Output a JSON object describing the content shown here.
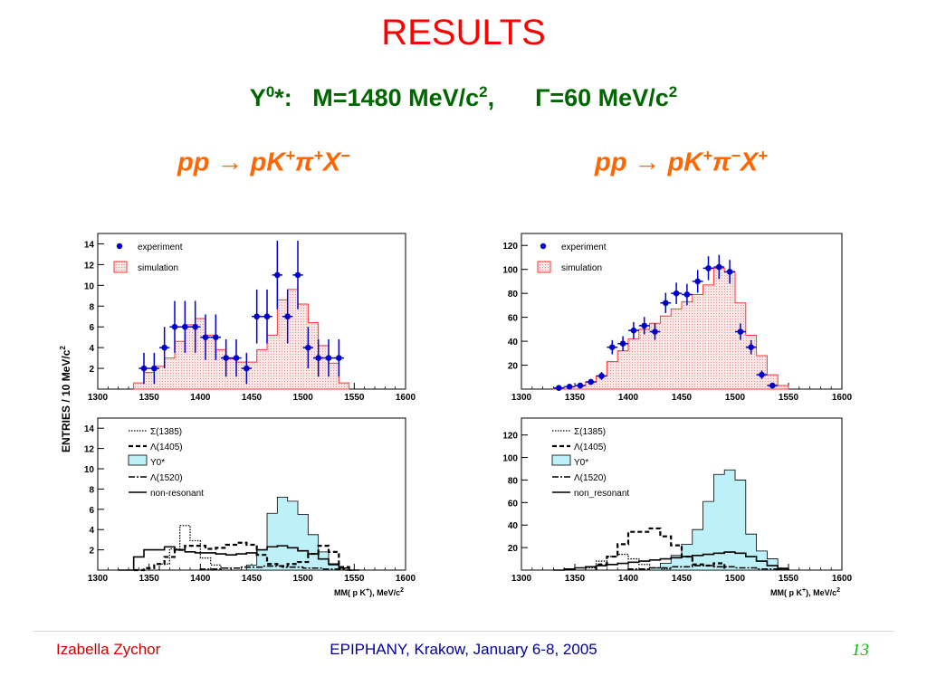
{
  "slide": {
    "title": "RESULTS",
    "subtitle": {
      "particle": "Y",
      "particle_sup": "0",
      "particle_suffix": "*:",
      "mass": "M=1480 MeV/c",
      "mass_sup": "2",
      "mass_suffix": ",",
      "width": "Γ=60 MeV/c",
      "width_sup": "2"
    },
    "reaction_left": {
      "initial": "pp",
      "arrow": "→",
      "products": "pK",
      "k_sup": "+",
      "pi": "π",
      "pi_sup": "+",
      "x": "X",
      "x_sup": "−"
    },
    "reaction_right": {
      "initial": "pp",
      "arrow": "→",
      "products": "pK",
      "k_sup": "+",
      "pi": "π",
      "pi_sup": "−",
      "x": "X",
      "x_sup": "+"
    },
    "ylabel": "ENTRIES / 10 MeV/c",
    "ylabel_sup": "2",
    "xlabel": "MM( p K",
    "xlabel_sup": "+",
    "xlabel_suffix": "), MeV/c",
    "xlabel_sup2": "2",
    "footer": {
      "author": "Izabella Zychor",
      "event": "EPIPHANY, Krakow, January 6-8, 2005",
      "page": "13"
    }
  },
  "colors": {
    "title": "#ff0000",
    "subtitle": "#006600",
    "reaction": "#ff6600",
    "experiment": "#0000cc",
    "simulation": "#ff3333",
    "simulation_fill": "#f7d4d4",
    "y0_fill": "#bdf1f7",
    "footer_author": "#cc0000",
    "footer_event": "#000099",
    "footer_page": "#00bb00"
  },
  "chart_data": [
    {
      "id": "top-left",
      "type": "histogram",
      "xlim": [
        1300,
        1600
      ],
      "ylim": [
        0,
        15
      ],
      "xticks": [
        1300,
        1350,
        1400,
        1450,
        1500,
        1550,
        1600
      ],
      "yticks": [
        2,
        4,
        6,
        8,
        10,
        12,
        14
      ],
      "legend": [
        "experiment",
        "simulation"
      ],
      "simulation": {
        "name": "simulation",
        "edges": [
          1335,
          1345,
          1355,
          1365,
          1375,
          1385,
          1395,
          1405,
          1415,
          1425,
          1435,
          1445,
          1455,
          1465,
          1475,
          1485,
          1495,
          1505,
          1515,
          1525,
          1535,
          1545
        ],
        "values": [
          0.6,
          1.6,
          2.2,
          3.0,
          4.6,
          6.2,
          6.8,
          5.2,
          3.8,
          2.9,
          2.6,
          2.6,
          3.8,
          5.2,
          8.6,
          9.6,
          8.2,
          6.4,
          4.2,
          2.5,
          0.6
        ]
      },
      "experiment": {
        "name": "experiment",
        "x": [
          1345,
          1355,
          1365,
          1375,
          1385,
          1395,
          1405,
          1415,
          1425,
          1435,
          1445,
          1455,
          1465,
          1475,
          1485,
          1495,
          1505,
          1515,
          1525,
          1535
        ],
        "y": [
          2,
          2,
          4,
          6,
          6,
          6,
          5,
          5,
          3,
          3,
          2,
          7,
          7,
          11,
          7,
          11,
          4,
          3,
          3,
          3
        ],
        "err": [
          1.5,
          1.5,
          2.0,
          2.5,
          2.5,
          2.5,
          2.2,
          2.2,
          1.8,
          1.8,
          1.5,
          2.6,
          2.6,
          3.3,
          2.6,
          3.3,
          2.0,
          1.8,
          1.8,
          1.8
        ]
      }
    },
    {
      "id": "top-right",
      "type": "histogram",
      "xlim": [
        1300,
        1600
      ],
      "ylim": [
        0,
        130
      ],
      "xticks": [
        1300,
        1350,
        1400,
        1450,
        1500,
        1550,
        1600
      ],
      "yticks": [
        20,
        40,
        60,
        80,
        100,
        120
      ],
      "legend": [
        "experiment",
        "simulation"
      ],
      "simulation": {
        "name": "simulation",
        "edges": [
          1330,
          1340,
          1350,
          1360,
          1370,
          1380,
          1390,
          1400,
          1410,
          1420,
          1430,
          1440,
          1450,
          1460,
          1470,
          1480,
          1490,
          1500,
          1510,
          1520,
          1530,
          1540,
          1550
        ],
        "values": [
          1,
          2,
          3,
          6,
          11,
          23,
          32,
          42,
          50,
          55,
          61,
          67,
          73,
          79,
          87,
          101,
          98,
          72,
          45,
          28,
          12,
          3
        ]
      },
      "experiment": {
        "name": "experiment",
        "x": [
          1335,
          1345,
          1355,
          1365,
          1375,
          1385,
          1395,
          1405,
          1415,
          1425,
          1435,
          1445,
          1455,
          1465,
          1475,
          1485,
          1495,
          1505,
          1515,
          1525,
          1535
        ],
        "y": [
          1,
          2,
          3,
          6,
          11,
          35,
          38,
          49,
          53,
          48,
          72,
          80,
          79,
          90,
          101,
          102,
          98,
          48,
          35,
          12,
          3
        ],
        "err": [
          1,
          1.4,
          1.7,
          2.4,
          3.3,
          5.9,
          6.2,
          7.0,
          7.3,
          6.9,
          8.5,
          8.9,
          8.9,
          9.5,
          10.0,
          10.1,
          9.9,
          6.9,
          5.9,
          3.5,
          1.7
        ]
      }
    },
    {
      "id": "bottom-left",
      "type": "histogram",
      "xlim": [
        1300,
        1600
      ],
      "ylim": [
        0,
        15
      ],
      "xticks": [
        1300,
        1350,
        1400,
        1450,
        1500,
        1550,
        1600
      ],
      "yticks": [
        2,
        4,
        6,
        8,
        10,
        12,
        14
      ],
      "legend": [
        "Σ(1385)",
        "Λ(1405)",
        "Y0*",
        "Λ(1520)",
        "non-resonant"
      ],
      "series": [
        {
          "name": "Y0*",
          "edges": [
            1445,
            1455,
            1465,
            1475,
            1485,
            1495,
            1505,
            1515,
            1525,
            1535
          ],
          "values": [
            0.5,
            2.0,
            5.6,
            7.2,
            6.8,
            5.5,
            3.5,
            1.8,
            0.5
          ]
        },
        {
          "name": "Σ(1385)",
          "edges": [
            1360,
            1370,
            1380,
            1390,
            1400,
            1410,
            1420,
            1430
          ],
          "values": [
            0.6,
            2.1,
            4.4,
            2.9,
            1.2,
            0.5,
            0.2
          ]
        },
        {
          "name": "Λ(1405)",
          "edges": [
            1335,
            1345,
            1355,
            1365,
            1375,
            1385,
            1395,
            1405,
            1415,
            1425,
            1435,
            1445,
            1455,
            1465,
            1475,
            1485,
            1495,
            1505,
            1515,
            1525,
            1535,
            1545
          ],
          "values": [
            0.0,
            0.2,
            0.6,
            1.3,
            2.0,
            2.4,
            2.4,
            2.1,
            2.2,
            2.5,
            2.7,
            2.5,
            1.5,
            0.6,
            0.4,
            0.6,
            0.8,
            1.6,
            2.4,
            1.8,
            0.3
          ]
        },
        {
          "name": "Λ(1520)",
          "edges": [
            1400,
            1420,
            1440,
            1460,
            1480,
            1500,
            1520,
            1540,
            1550
          ],
          "values": [
            0.1,
            0.2,
            0.3,
            0.4,
            0.3,
            0.2,
            0.1,
            0.0
          ]
        },
        {
          "name": "non-resonant",
          "edges": [
            1320,
            1335,
            1345,
            1355,
            1365,
            1375,
            1385,
            1395,
            1405,
            1415,
            1425,
            1435,
            1445,
            1455,
            1465,
            1475,
            1485,
            1495,
            1505,
            1515,
            1525,
            1535,
            1545,
            1555
          ],
          "values": [
            0.0,
            1.3,
            2.0,
            2.0,
            2.3,
            2.0,
            1.8,
            1.7,
            1.7,
            1.6,
            1.5,
            1.6,
            1.7,
            2.0,
            2.3,
            2.4,
            2.2,
            1.9,
            1.6,
            1.1,
            0.6,
            0.2,
            0.0
          ]
        }
      ]
    },
    {
      "id": "bottom-right",
      "type": "histogram",
      "xlim": [
        1300,
        1600
      ],
      "ylim": [
        0,
        135
      ],
      "xticks": [
        1300,
        1350,
        1400,
        1450,
        1500,
        1550,
        1600
      ],
      "yticks": [
        20,
        40,
        60,
        80,
        100,
        120
      ],
      "legend": [
        "Σ(1385)",
        "Λ(1405)",
        "Y0*",
        "Λ(1520)",
        "non_resonant"
      ],
      "series": [
        {
          "name": "Y0*",
          "edges": [
            1420,
            1430,
            1440,
            1450,
            1460,
            1470,
            1480,
            1490,
            1500,
            1510,
            1520,
            1530,
            1540,
            1550
          ],
          "values": [
            2,
            6,
            13,
            23,
            36,
            61,
            85,
            89,
            80,
            32,
            17,
            10,
            2
          ]
        },
        {
          "name": "Σ(1385)",
          "edges": [
            1360,
            1370,
            1380,
            1390,
            1400,
            1410,
            1420,
            1430,
            1440
          ],
          "values": [
            2,
            8,
            12,
            14,
            10,
            5,
            2,
            1
          ]
        },
        {
          "name": "Λ(1405)",
          "edges": [
            1370,
            1380,
            1390,
            1400,
            1410,
            1420,
            1430,
            1440,
            1450,
            1460,
            1470,
            1480,
            1490
          ],
          "values": [
            5,
            12,
            23,
            34,
            34,
            37,
            30,
            22,
            12,
            5,
            4,
            6
          ]
        },
        {
          "name": "Λ(1520)",
          "edges": [
            1400,
            1420,
            1440,
            1460,
            1480,
            1500,
            1520,
            1540
          ],
          "values": [
            1,
            2,
            3,
            4,
            3,
            2,
            1
          ]
        },
        {
          "name": "non_resonant",
          "edges": [
            1330,
            1340,
            1350,
            1360,
            1370,
            1380,
            1390,
            1400,
            1410,
            1420,
            1430,
            1440,
            1450,
            1460,
            1470,
            1480,
            1490,
            1500,
            1510,
            1520,
            1530,
            1540,
            1550
          ],
          "values": [
            0,
            1,
            2,
            3,
            4,
            5,
            6,
            7,
            8,
            9,
            10,
            11,
            12,
            13,
            14,
            15,
            16,
            15,
            12,
            8,
            4,
            1
          ]
        }
      ]
    }
  ]
}
